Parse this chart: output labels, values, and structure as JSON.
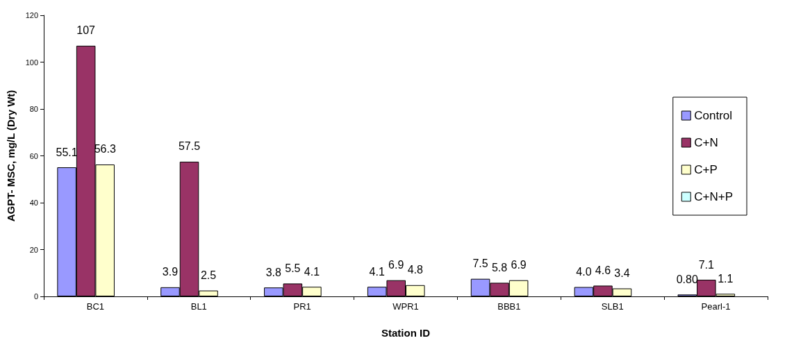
{
  "chart_data": {
    "type": "bar",
    "xlabel": "Station ID",
    "ylabel": "AGPT- MSC, mg/L (Dry Wt)",
    "categories": [
      "BC1",
      "BL1",
      "PR1",
      "WPR1",
      "BBB1",
      "SLB1",
      "Pearl-1"
    ],
    "series": [
      {
        "name": "Control",
        "color": "#9999ff",
        "values": [
          55.1,
          3.9,
          3.8,
          4.1,
          7.5,
          4.0,
          0.8
        ],
        "value_labels": [
          "55.1",
          "3.9",
          "3.8",
          "4.1",
          "7.5",
          "4.0",
          "0.80"
        ]
      },
      {
        "name": "C+N",
        "color": "#993366",
        "values": [
          107,
          57.5,
          5.5,
          6.9,
          5.8,
          4.6,
          7.1
        ],
        "value_labels": [
          "107",
          "57.5",
          "5.5",
          "6.9",
          "5.8",
          "4.6",
          "7.1"
        ]
      },
      {
        "name": "C+P",
        "color": "#ffffcc",
        "values": [
          56.3,
          2.5,
          4.1,
          4.8,
          6.9,
          3.4,
          1.1
        ],
        "value_labels": [
          "56.3",
          "2.5",
          "4.1",
          "4.8",
          "6.9",
          "3.4",
          "1.1"
        ]
      },
      {
        "name": "C+N+P",
        "color": "#ccffff",
        "values": [
          null,
          null,
          null,
          null,
          null,
          null,
          null
        ]
      }
    ],
    "ylim": [
      0,
      120
    ],
    "yticks": [
      0,
      20,
      40,
      60,
      80,
      100,
      120
    ],
    "grid": false,
    "legend": "right"
  }
}
